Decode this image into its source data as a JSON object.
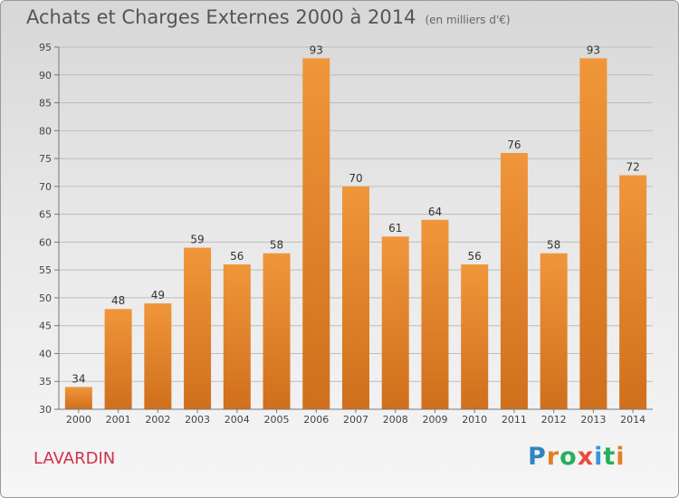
{
  "chart_data": {
    "type": "bar",
    "title": "Achats et Charges Externes 2000 à 2014",
    "subtitle": "(en milliers d'€)",
    "categories": [
      "2000",
      "2001",
      "2002",
      "2003",
      "2004",
      "2005",
      "2006",
      "2007",
      "2008",
      "2009",
      "2010",
      "2011",
      "2012",
      "2013",
      "2014"
    ],
    "values": [
      34,
      48,
      49,
      59,
      56,
      58,
      93,
      70,
      61,
      64,
      56,
      76,
      58,
      93,
      72
    ],
    "ylim": [
      30,
      95
    ],
    "yticks": [
      30,
      35,
      40,
      45,
      50,
      55,
      60,
      65,
      70,
      75,
      80,
      85,
      90,
      95
    ],
    "grid": true,
    "bar_color": "#f0963a",
    "bar_color_dark": "#d06f1c"
  },
  "place": "LAVARDIN",
  "brand": {
    "letters": [
      "P",
      "r",
      "o",
      "x",
      "i",
      "t",
      "i"
    ],
    "colors": [
      "#2e86c1",
      "#e67e22",
      "#27ae60",
      "#e74c3c",
      "#3498db",
      "#27ae60",
      "#e67e22"
    ]
  }
}
